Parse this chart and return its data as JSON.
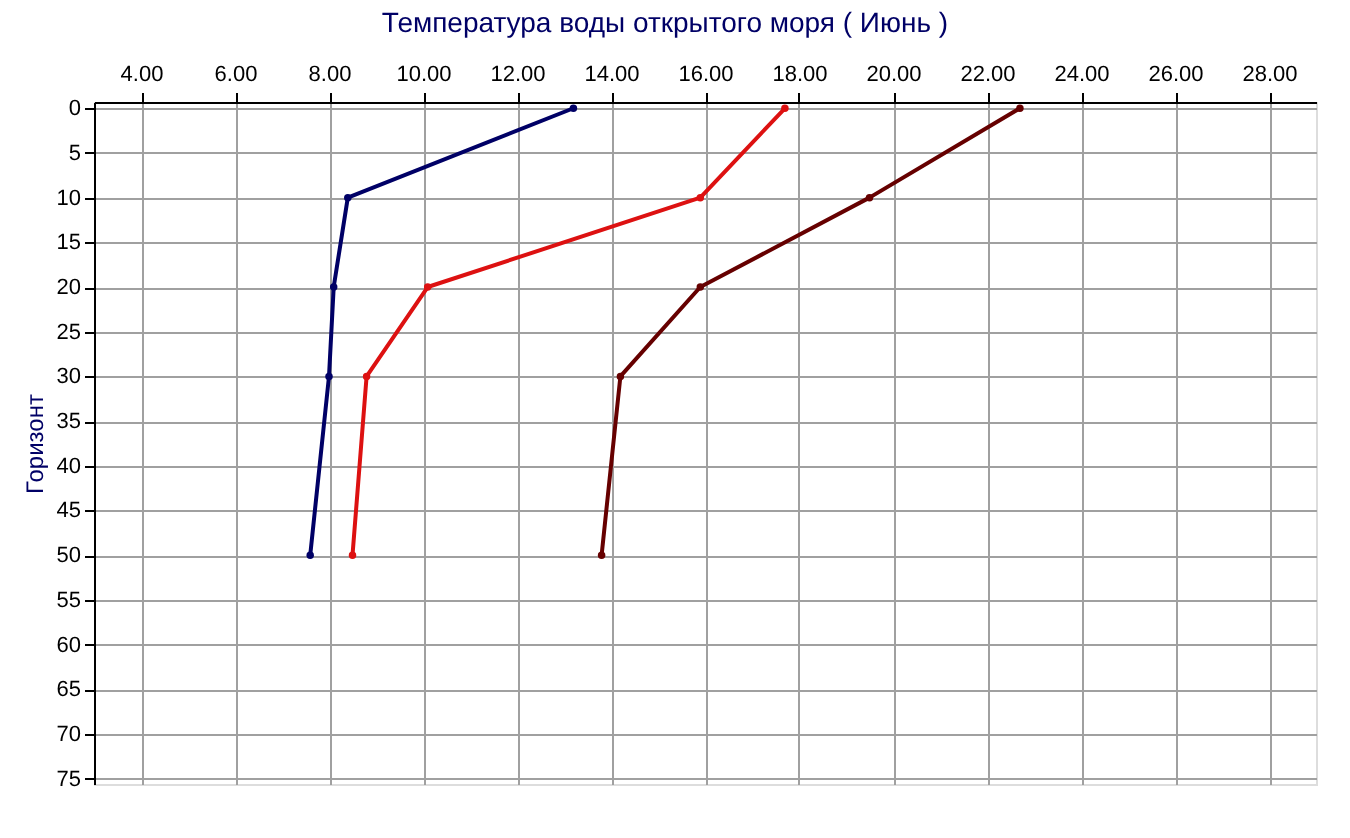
{
  "chart_data": {
    "type": "line",
    "title": "Температура воды открытого моря     ( Июнь )",
    "ylabel": "Горизонт",
    "xlim": [
      3,
      29
    ],
    "xticks": [
      {
        "value": 4,
        "label": "4.00"
      },
      {
        "value": 6,
        "label": "6.00"
      },
      {
        "value": 8,
        "label": "8.00"
      },
      {
        "value": 10,
        "label": "10.00"
      },
      {
        "value": 12,
        "label": "12.00"
      },
      {
        "value": 14,
        "label": "14.00"
      },
      {
        "value": 16,
        "label": "16.00"
      },
      {
        "value": 18,
        "label": "18.00"
      },
      {
        "value": 20,
        "label": "20.00"
      },
      {
        "value": 22,
        "label": "22.00"
      },
      {
        "value": 24,
        "label": "24.00"
      },
      {
        "value": 26,
        "label": "26.00"
      },
      {
        "value": 28,
        "label": "28.00"
      }
    ],
    "ylim": [
      75.6,
      -0.7
    ],
    "yticks": [
      0,
      5,
      10,
      15,
      20,
      25,
      30,
      35,
      40,
      45,
      50,
      55,
      60,
      65,
      70,
      75
    ],
    "grid": true,
    "marker": "circle",
    "line_style": "solid",
    "series": [
      {
        "color": "#000066",
        "x": [
          13.2,
          8.4,
          8.1,
          8.0,
          7.6
        ],
        "values": [
          0,
          10,
          20,
          30,
          50
        ]
      },
      {
        "color": "#dd1111",
        "x": [
          17.7,
          15.9,
          10.1,
          8.8,
          8.5
        ],
        "values": [
          0,
          10,
          20,
          30,
          50
        ]
      },
      {
        "color": "#660000",
        "x": [
          22.7,
          19.5,
          15.9,
          14.2,
          13.8
        ],
        "values": [
          0,
          10,
          20,
          30,
          50
        ]
      }
    ]
  }
}
